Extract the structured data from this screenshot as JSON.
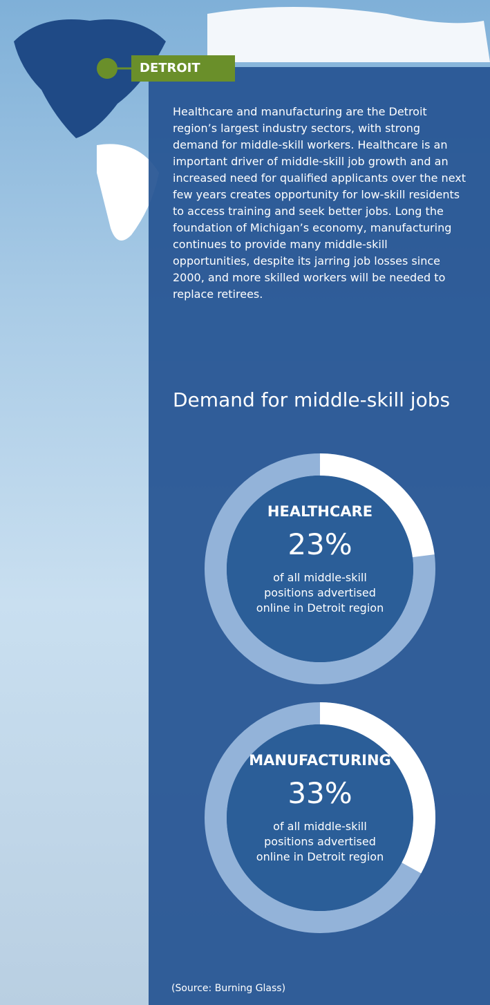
{
  "location": "DETROIT",
  "paragraph": "Healthcare and manufacturing are the Detroit region’s largest industry sectors, with strong demand for middle-skill workers. Healthcare is an important driver of middle-skill job growth and an increased need for qualified applicants over the next few years creates opportunity for low-skill residents to access training and seek better jobs. Long the foundation of Michigan’s economy, manufacturing continues to provide many middle-skill opportunities, despite its jarring job losses since 2000, and more skilled workers will be needed to replace retirees.",
  "heading": "Demand for middle-skill jobs",
  "source": "(Source: Burning Glass)",
  "chart_data": [
    {
      "type": "donut",
      "label": "HEALTHCARE",
      "values": [
        23
      ],
      "value_labels": [
        "23%"
      ],
      "ylim": [
        0,
        100
      ],
      "caption": "of all middle-skill positions advertised online in Detroit region",
      "color": "#ffffff",
      "track_color": "#93b3d9"
    },
    {
      "type": "donut",
      "label": "MANUFACTURING",
      "values": [
        33
      ],
      "value_labels": [
        "33%"
      ],
      "ylim": [
        0,
        100
      ],
      "caption": "of all middle-skill positions advertised online in Detroit region",
      "color": "#ffffff",
      "track_color": "#93b3d9"
    }
  ]
}
